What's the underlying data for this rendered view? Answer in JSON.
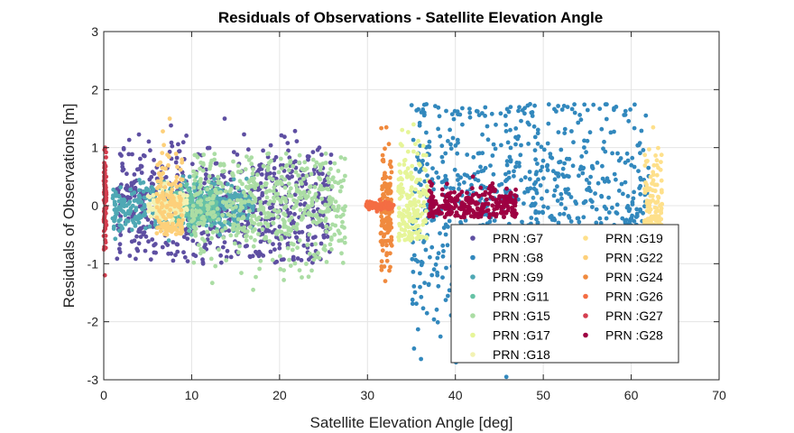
{
  "chart_data": {
    "type": "scatter",
    "title": "Residuals of Observations - Satellite Elevation Angle",
    "xlabel": "Satellite Elevation Angle [deg]",
    "ylabel": "Residuals of Observations [m]",
    "xlim": [
      0,
      70
    ],
    "ylim": [
      -3,
      3
    ],
    "xticks": [
      "0",
      "10",
      "20",
      "30",
      "40",
      "50",
      "60",
      "70"
    ],
    "yticks": [
      "-3",
      "-2",
      "-1",
      "0",
      "1",
      "2",
      "3"
    ],
    "grid": true,
    "legend_position": "lower-right",
    "series": [
      {
        "name": "PRN :G7",
        "color": "#5e4fa2",
        "x_range": [
          1.5,
          26
        ],
        "y_spread": [
          -1.0,
          1.5
        ]
      },
      {
        "name": "PRN :G8",
        "color": "#3288bd",
        "x_range": [
          35,
          62
        ],
        "y_spread": [
          -2.95,
          1.75
        ]
      },
      {
        "name": "PRN :G9",
        "color": "#4fa8b4",
        "x_range": [
          1,
          17
        ],
        "y_spread": [
          -0.6,
          0.5
        ]
      },
      {
        "name": "PRN :G11",
        "color": "#66c2a5",
        "x_range": [
          8,
          13
        ],
        "y_spread": [
          -0.5,
          0.5
        ]
      },
      {
        "name": "PRN :G15",
        "color": "#abdda4",
        "x_range": [
          10,
          27.5
        ],
        "y_spread": [
          -1.45,
          0.9
        ]
      },
      {
        "name": "PRN :G17",
        "color": "#e6f598",
        "x_range": [
          33.5,
          37
        ],
        "y_spread": [
          -0.6,
          1.4
        ]
      },
      {
        "name": "PRN :G18",
        "color": "#f2f2b3",
        "x_range": [
          5,
          9.5
        ],
        "y_spread": [
          -0.4,
          0.4
        ]
      },
      {
        "name": "PRN :G19",
        "color": "#fee08b",
        "x_range": [
          61.5,
          63.5
        ],
        "y_spread": [
          -0.4,
          1.35
        ]
      },
      {
        "name": "PRN :G22",
        "color": "#fdd07a",
        "x_range": [
          6,
          9
        ],
        "y_spread": [
          -0.5,
          1.5
        ]
      },
      {
        "name": "PRN :G24",
        "color": "#f08a3e",
        "x_range": [
          31.5,
          32.8
        ],
        "y_spread": [
          -1.3,
          1.35
        ]
      },
      {
        "name": "PRN :G26",
        "color": "#f46d43",
        "x_range": [
          29.8,
          33
        ],
        "y_spread": [
          -0.1,
          0.1
        ]
      },
      {
        "name": "PRN :G27",
        "color": "#d53e4f",
        "x_range": [
          0,
          0.3
        ],
        "y_spread": [
          -1.2,
          1.0
        ]
      },
      {
        "name": "PRN :G28",
        "color": "#9e0142",
        "x_range": [
          37,
          47
        ],
        "y_spread": [
          -0.2,
          0.5
        ]
      }
    ]
  }
}
